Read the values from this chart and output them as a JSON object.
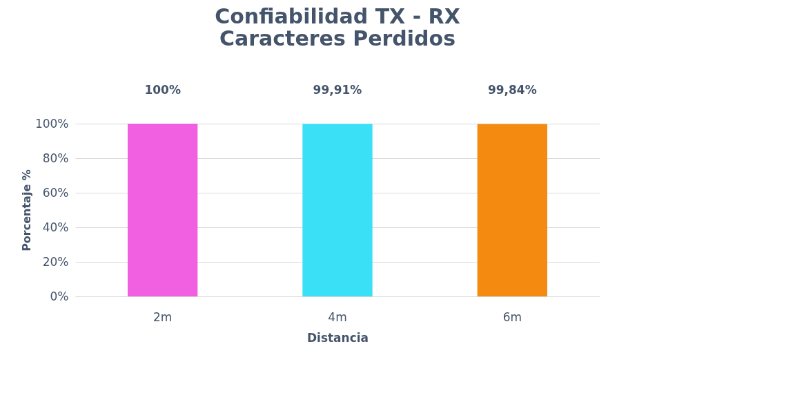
{
  "chart_data": {
    "type": "bar",
    "title": [
      "Confiabilidad TX - RX",
      "Caracteres Perdidos"
    ],
    "xlabel": "Distancia",
    "ylabel": "Porcentaje %",
    "categories": [
      "2m",
      "4m",
      "6m"
    ],
    "values": [
      100,
      99.91,
      99.84
    ],
    "colors": [
      "#f060e0",
      "#3ae0f5",
      "#f58a10"
    ],
    "value_labels": [
      "100%",
      "99,91%",
      "99,84%"
    ],
    "ylim": [
      0,
      100
    ],
    "yticks": [
      {
        "value": 0,
        "label": "0%"
      },
      {
        "value": 20,
        "label": "20%"
      },
      {
        "value": 40,
        "label": "40%"
      },
      {
        "value": 60,
        "label": "60%"
      },
      {
        "value": 80,
        "label": "80%"
      },
      {
        "value": 100,
        "label": "100%"
      }
    ],
    "grid": "y"
  }
}
